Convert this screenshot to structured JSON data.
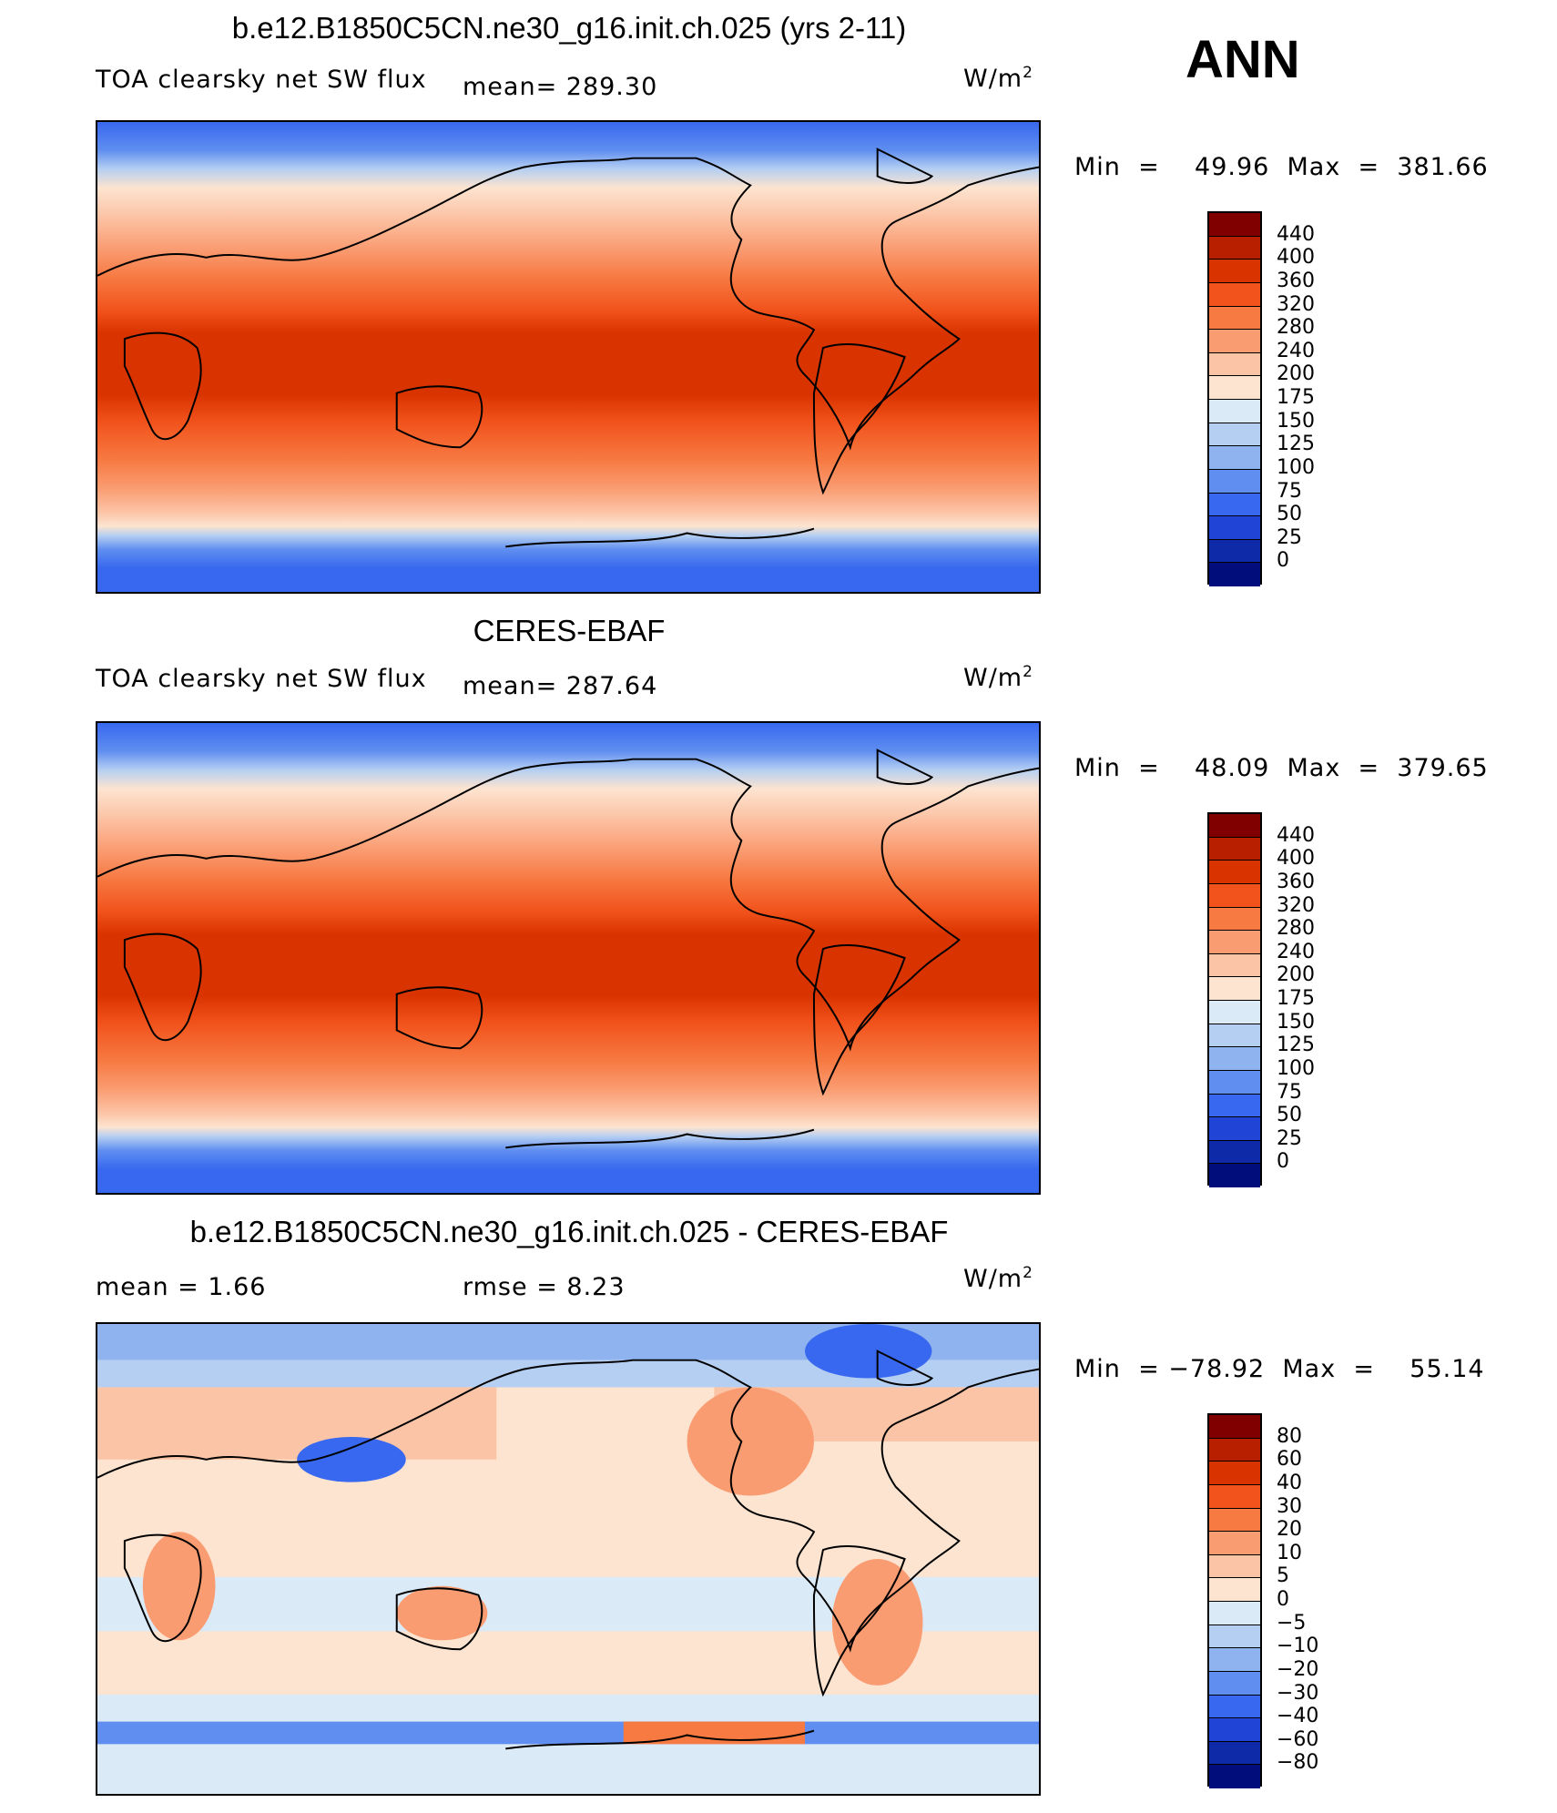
{
  "season": "ANN",
  "units_html": "W/m",
  "units_sup": "2",
  "panels": [
    {
      "title": "b.e12.B1850C5CN.ne30_g16.init.ch.025 (yrs 2-11)",
      "left_label": "TOA clearsky net SW flux",
      "mid_label": "mean=  289.30",
      "min_label": "Min  =    49.96  Max  =  381.66",
      "ticks": [
        "440",
        "400",
        "360",
        "320",
        "280",
        "240",
        "200",
        "175",
        "150",
        "125",
        "100",
        "75",
        "50",
        "25",
        "0"
      ],
      "colors": [
        "#800000",
        "#b81e00",
        "#d93300",
        "#f2531c",
        "#f77a43",
        "#fa9c72",
        "#fcc4a6",
        "#fde4d0",
        "#dbeaf7",
        "#b5cff2",
        "#8eb3ee",
        "#5f8ef0",
        "#3868ef",
        "#1f44d6",
        "#0e2aa8",
        "#000d7a"
      ]
    },
    {
      "title": "CERES-EBAF",
      "left_label": "TOA clearsky net SW flux",
      "mid_label": "mean=  287.64",
      "min_label": "Min  =    48.09  Max  =  379.65",
      "ticks": [
        "440",
        "400",
        "360",
        "320",
        "280",
        "240",
        "200",
        "175",
        "150",
        "125",
        "100",
        "75",
        "50",
        "25",
        "0"
      ],
      "colors": [
        "#800000",
        "#b81e00",
        "#d93300",
        "#f2531c",
        "#f77a43",
        "#fa9c72",
        "#fcc4a6",
        "#fde4d0",
        "#dbeaf7",
        "#b5cff2",
        "#8eb3ee",
        "#5f8ef0",
        "#3868ef",
        "#1f44d6",
        "#0e2aa8",
        "#000d7a"
      ]
    },
    {
      "title": "b.e12.B1850C5CN.ne30_g16.init.ch.025 - CERES-EBAF",
      "left_label": "mean  =      1.66",
      "mid_label": "rmse  =     8.23",
      "min_label": "Min  = −78.92  Max  =    55.14",
      "ticks": [
        "80",
        "60",
        "40",
        "30",
        "20",
        "10",
        "5",
        "0",
        "−5",
        "−10",
        "−20",
        "−30",
        "−40",
        "−60",
        "−80"
      ],
      "colors": [
        "#800000",
        "#b81e00",
        "#d93300",
        "#f2531c",
        "#f77a43",
        "#fa9c72",
        "#fcc4a6",
        "#fde4d0",
        "#dbeaf7",
        "#b5cff2",
        "#8eb3ee",
        "#5f8ef0",
        "#3868ef",
        "#1f44d6",
        "#0e2aa8",
        "#000d7a"
      ]
    }
  ]
}
